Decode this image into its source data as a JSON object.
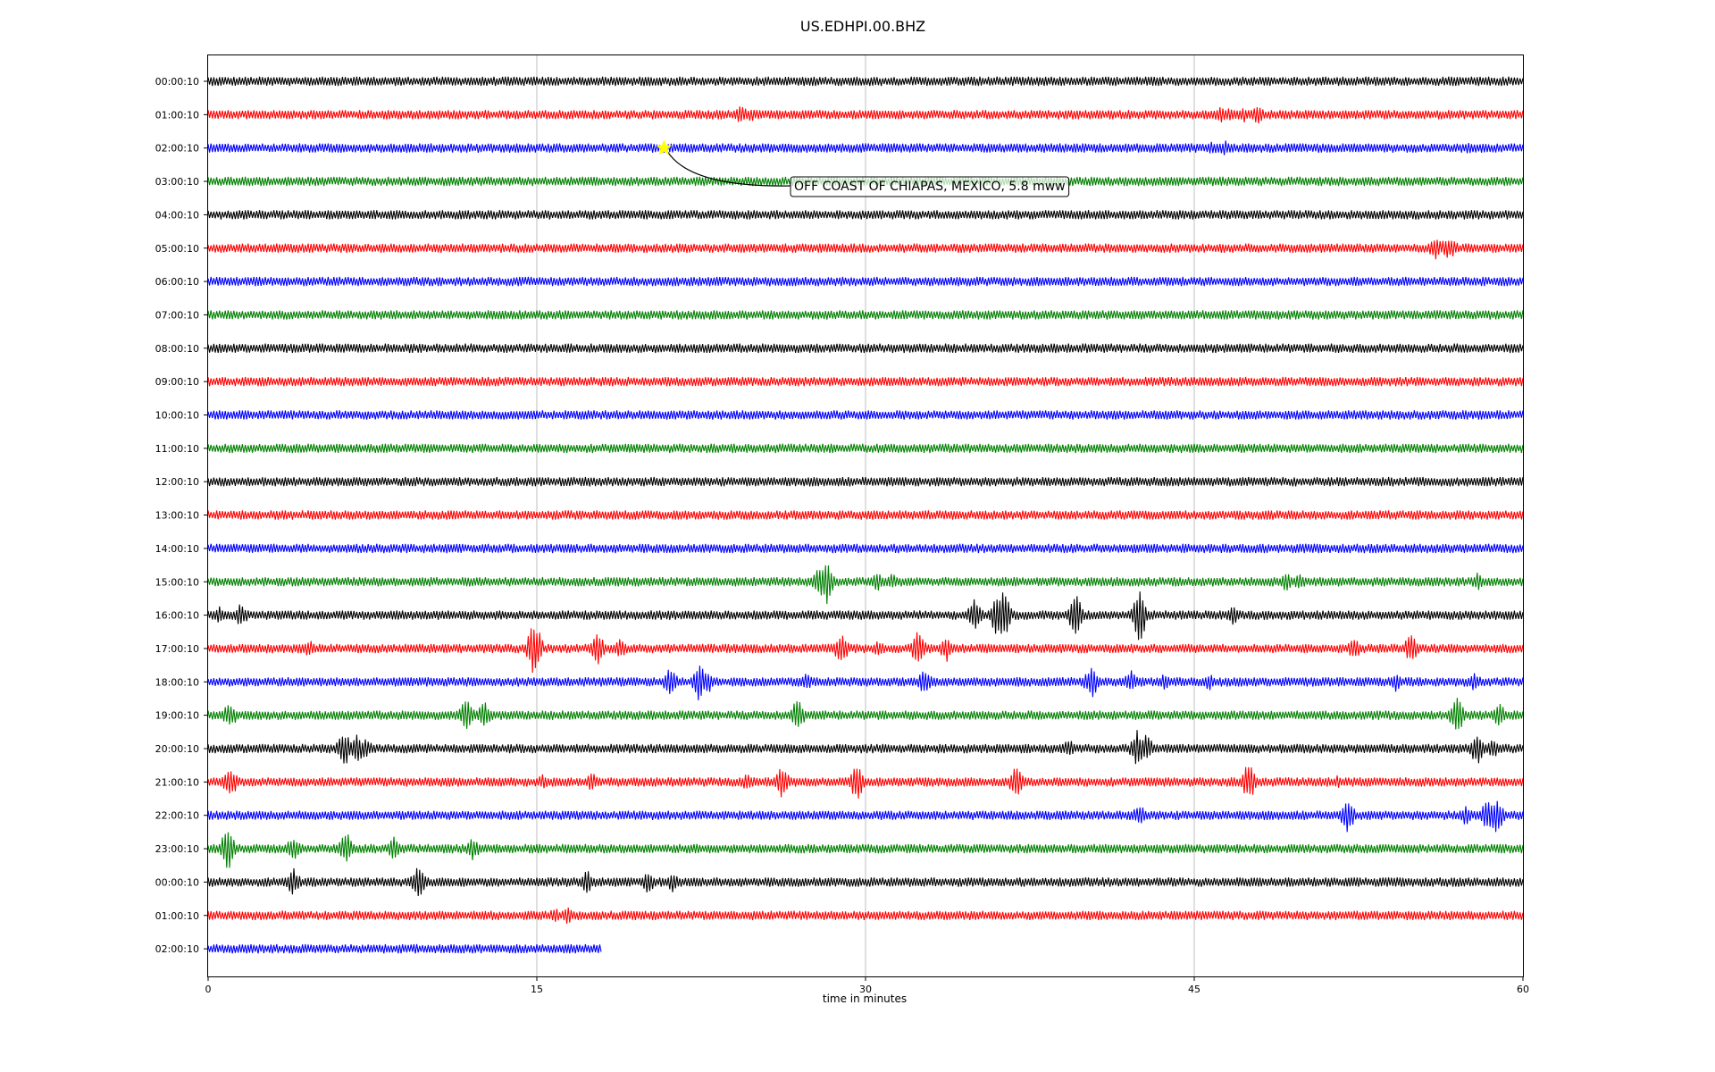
{
  "chart_data": {
    "type": "line",
    "title": "US.EDHPI.00.BHZ",
    "xlabel": "time in minutes",
    "ylabel": "",
    "xlim": [
      0,
      60
    ],
    "xticks": [
      0,
      15,
      30,
      45,
      60
    ],
    "grid": "vertical",
    "trace_colors": [
      "#000000",
      "#ff0000",
      "#0000ff",
      "#008000"
    ],
    "rows": [
      {
        "label": "00:00:10",
        "end": 60,
        "events": [
          [
            5.6,
            5
          ],
          [
            36,
            6
          ]
        ]
      },
      {
        "label": "01:00:10",
        "end": 60,
        "events": [
          [
            24.3,
            12
          ],
          [
            24.8,
            9
          ],
          [
            46.2,
            10
          ],
          [
            46.6,
            9
          ],
          [
            47.3,
            9
          ],
          [
            47.9,
            13
          ]
        ]
      },
      {
        "label": "02:00:10",
        "end": 60,
        "events": [
          [
            45.8,
            9
          ],
          [
            46.4,
            9
          ],
          [
            57.5,
            7
          ],
          [
            58.2,
            6
          ]
        ]
      },
      {
        "label": "03:00:10",
        "end": 60,
        "events": []
      },
      {
        "label": "04:00:10",
        "end": 60,
        "events": [
          [
            38.7,
            5
          ]
        ]
      },
      {
        "label": "05:00:10",
        "end": 60,
        "events": [
          [
            12.2,
            5
          ],
          [
            53.2,
            5
          ],
          [
            56,
            14
          ],
          [
            56.5,
            12
          ],
          [
            56.8,
            10
          ]
        ]
      },
      {
        "label": "06:00:10",
        "end": 60,
        "events": []
      },
      {
        "label": "07:00:10",
        "end": 60,
        "events": []
      },
      {
        "label": "08:00:10",
        "end": 60,
        "events": []
      },
      {
        "label": "09:00:10",
        "end": 60,
        "events": []
      },
      {
        "label": "10:00:10",
        "end": 60,
        "events": []
      },
      {
        "label": "11:00:10",
        "end": 60,
        "events": []
      },
      {
        "label": "12:00:10",
        "end": 60,
        "events": []
      },
      {
        "label": "13:00:10",
        "end": 60,
        "events": []
      },
      {
        "label": "14:00:10",
        "end": 60,
        "events": []
      },
      {
        "label": "15:00:10",
        "end": 60,
        "events": [
          [
            27.9,
            20
          ],
          [
            28.2,
            28
          ],
          [
            30.5,
            12
          ],
          [
            31.2,
            10
          ],
          [
            49.2,
            12
          ],
          [
            49.8,
            10
          ],
          [
            57.9,
            11
          ]
        ]
      },
      {
        "label": "16:00:10",
        "end": 60,
        "events": [
          [
            0.5,
            11
          ],
          [
            1.5,
            14
          ],
          [
            35,
            20
          ],
          [
            36,
            24
          ],
          [
            36.3,
            30
          ],
          [
            39.6,
            26
          ],
          [
            42.5,
            32
          ],
          [
            46.8,
            13
          ],
          [
            55.3,
            5
          ]
        ]
      },
      {
        "label": "17:00:10",
        "end": 60,
        "events": [
          [
            4.6,
            11
          ],
          [
            14.9,
            34
          ],
          [
            17.8,
            18
          ],
          [
            18.8,
            12
          ],
          [
            28.9,
            20
          ],
          [
            30.6,
            10
          ],
          [
            32.4,
            22
          ],
          [
            33.7,
            16
          ],
          [
            52.3,
            14
          ],
          [
            54.9,
            18
          ]
        ]
      },
      {
        "label": "18:00:10",
        "end": 60,
        "events": [
          [
            21.1,
            18
          ],
          [
            22.4,
            22
          ],
          [
            22.8,
            14
          ],
          [
            27.3,
            10
          ],
          [
            32.7,
            16
          ],
          [
            40.3,
            20
          ],
          [
            42.1,
            14
          ],
          [
            43.6,
            10
          ],
          [
            45.7,
            10
          ],
          [
            54.2,
            12
          ],
          [
            57.8,
            12
          ]
        ]
      },
      {
        "label": "19:00:10",
        "end": 60,
        "events": [
          [
            1,
            16
          ],
          [
            11.8,
            22
          ],
          [
            12.6,
            16
          ],
          [
            26.9,
            20
          ],
          [
            57,
            24
          ],
          [
            58.9,
            16
          ]
        ]
      },
      {
        "label": "20:00:10",
        "end": 60,
        "events": [
          [
            6.2,
            22
          ],
          [
            6.8,
            18
          ],
          [
            7.2,
            12
          ],
          [
            39.3,
            12
          ],
          [
            42.4,
            22
          ],
          [
            42.8,
            18
          ],
          [
            57.9,
            20
          ],
          [
            58.6,
            13
          ]
        ]
      },
      {
        "label": "21:00:10",
        "end": 60,
        "events": [
          [
            1,
            20
          ],
          [
            15.3,
            10
          ],
          [
            17.5,
            12
          ],
          [
            24.6,
            10
          ],
          [
            26.2,
            20
          ],
          [
            29.6,
            22
          ],
          [
            36.9,
            22
          ],
          [
            47.5,
            24
          ],
          [
            51.5,
            8
          ]
        ]
      },
      {
        "label": "22:00:10",
        "end": 60,
        "events": [
          [
            42.5,
            14
          ],
          [
            52,
            20
          ],
          [
            57.4,
            12
          ],
          [
            58.4,
            20
          ],
          [
            58.8,
            22
          ]
        ]
      },
      {
        "label": "23:00:10",
        "end": 60,
        "events": [
          [
            0.9,
            26
          ],
          [
            3.9,
            16
          ],
          [
            6.3,
            20
          ],
          [
            8.5,
            14
          ],
          [
            12.1,
            14
          ],
          [
            22.3,
            6
          ]
        ]
      },
      {
        "label": "00:00:10",
        "end": 60,
        "events": [
          [
            3.9,
            16
          ],
          [
            9.6,
            22
          ],
          [
            17.3,
            14
          ],
          [
            20.1,
            14
          ],
          [
            21.2,
            12
          ],
          [
            44,
            6
          ],
          [
            52.5,
            6
          ]
        ]
      },
      {
        "label": "01:00:10",
        "end": 60,
        "events": [
          [
            3.4,
            6
          ],
          [
            15.8,
            10
          ],
          [
            16.4,
            12
          ],
          [
            33.3,
            6
          ]
        ]
      },
      {
        "label": "02:00:10",
        "end": 18,
        "events": [
          [
            5.3,
            4
          ]
        ]
      }
    ],
    "annotation": {
      "text": "OFF COAST OF CHIAPAS, MEXICO, 5.8 mww",
      "marker_row": 2,
      "marker_minute": 20.8,
      "marker_color": "#ffff00"
    }
  }
}
